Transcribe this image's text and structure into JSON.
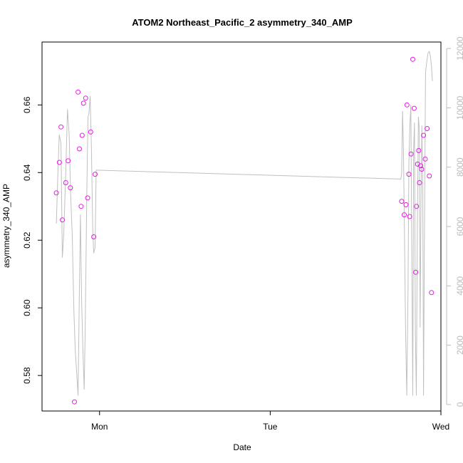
{
  "chart_data": {
    "type": "scatter",
    "title": "ATOM2 Northeast_Pacific_2 asymmetry_340_AMP",
    "xlabel": "Date",
    "ylabel": "asymmetry_340_AMP",
    "x_ticks": [
      "Mon",
      "Tue",
      "Wed"
    ],
    "xlim": [
      -0.337,
      2.0
    ],
    "ylim": [
      0.5695,
      0.6786
    ],
    "y_ticks": [
      0.58,
      0.6,
      0.62,
      0.64,
      0.66
    ],
    "y2lim": [
      -218,
      12218
    ],
    "y2_ticks": [
      0,
      2000,
      4000,
      6000,
      8000,
      10000,
      12000
    ],
    "grid": false,
    "colors": {
      "points": "#e01ee0",
      "line": "#c0c0c0",
      "axis": "#000000",
      "axis2": "#bbbbbb"
    },
    "series": [
      {
        "kind": "points",
        "x": [
          -0.253,
          -0.235,
          -0.226,
          -0.218,
          -0.198,
          -0.184,
          -0.171,
          -0.147,
          -0.126,
          -0.118,
          -0.108,
          -0.102,
          -0.094,
          -0.081,
          -0.07,
          -0.052,
          -0.034,
          -0.026,
          1.77,
          1.785,
          1.795,
          1.801,
          1.812,
          1.817,
          1.825,
          1.835,
          1.843,
          1.852,
          1.857,
          1.863,
          1.87,
          1.875,
          1.882,
          1.887,
          1.898,
          1.908,
          1.919,
          1.932,
          1.945
        ],
        "y": [
          0.634,
          0.643,
          0.6535,
          0.626,
          0.637,
          0.6435,
          0.6355,
          0.5722,
          0.6638,
          0.647,
          0.63,
          0.651,
          0.6605,
          0.662,
          0.6325,
          0.652,
          0.621,
          0.6395,
          0.6315,
          0.6275,
          0.6305,
          0.66,
          0.6395,
          0.627,
          0.6455,
          0.6735,
          0.659,
          0.6105,
          0.63,
          0.6425,
          0.6465,
          0.637,
          0.642,
          0.641,
          0.651,
          0.644,
          0.653,
          0.639,
          0.6045
        ]
      },
      {
        "kind": "line",
        "axis": "right",
        "x": [
          -0.253,
          -0.245,
          -0.236,
          -0.226,
          -0.218,
          -0.21,
          -0.198,
          -0.188,
          -0.178,
          -0.17,
          -0.16,
          -0.15,
          -0.142,
          -0.134,
          -0.126,
          -0.12,
          -0.112,
          -0.105,
          -0.098,
          -0.09,
          -0.084,
          -0.075,
          -0.068,
          -0.062,
          -0.055,
          -0.048,
          -0.04,
          -0.034,
          -0.026,
          -0.02,
          1.765,
          1.77,
          1.775,
          1.78,
          1.786,
          1.793,
          1.8,
          1.807,
          1.812,
          1.818,
          1.824,
          1.829,
          1.835,
          1.84,
          1.845,
          1.85,
          1.856,
          1.862,
          1.868,
          1.873,
          1.878,
          1.883,
          1.888,
          1.893,
          1.898,
          1.903,
          1.91,
          1.918,
          1.925,
          1.932,
          1.938,
          1.945,
          1.95
        ],
        "y": [
          6100,
          7600,
          9100,
          8800,
          4950,
          5700,
          7800,
          9950,
          9100,
          7200,
          5700,
          3100,
          1800,
          1100,
          300,
          3000,
          6400,
          3500,
          1900,
          500,
          2500,
          7000,
          9700,
          9800,
          10400,
          8700,
          5900,
          5100,
          5300,
          7900,
          7600,
          7800,
          9900,
          8800,
          6000,
          2500,
          300,
          3800,
          8100,
          9400,
          10100,
          5500,
          300,
          8600,
          9500,
          2500,
          300,
          6000,
          9700,
          9300,
          2600,
          6700,
          9400,
          7700,
          300,
          5500,
          11200,
          11600,
          11850,
          11900,
          11750,
          11400,
          10900
        ]
      }
    ]
  }
}
